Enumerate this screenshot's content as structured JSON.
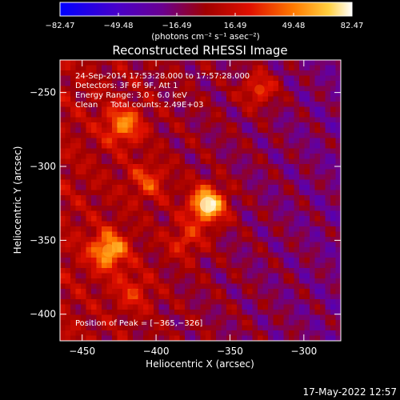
{
  "colorbar": {
    "ticks": [
      "−82.47",
      "−49.48",
      "−16.49",
      "16.49",
      "49.48",
      "82.47"
    ],
    "units": "(photons cm⁻² s⁻¹ asec⁻²)",
    "range": [
      -82.47,
      82.47
    ]
  },
  "chart_data": {
    "type": "heatmap",
    "title": "Reconstructed RHESSI Image",
    "xlabel": "Heliocentric X (arcsec)",
    "ylabel": "Heliocentric Y (arcsec)",
    "xlim": [
      -465,
      -275
    ],
    "ylim": [
      -418,
      -228
    ],
    "xticks": [
      -450,
      -400,
      -350,
      -300
    ],
    "yticks": [
      -250,
      -300,
      -350,
      -400
    ],
    "xtick_labels": [
      "−450",
      "−400",
      "−350",
      "−300"
    ],
    "ytick_labels": [
      "−250",
      "−300",
      "−350",
      "−400"
    ],
    "colormap": "thermal (blue → purple → red → orange → yellow → white)",
    "annotations": [
      "24-Sep-2014 17:53:28.000 to 17:57:28.000",
      "Detectors: 3F 6F 9F, Att 1",
      "Energy Range: 3.0 - 6.0 keV",
      "Clean     Total counts: 2.49E+03"
    ],
    "peak_label": "Position of Peak = [−365,−326]",
    "peak": {
      "x": -365,
      "y": -326
    },
    "sources": [
      {
        "x": -365,
        "y": -326,
        "intensity": 82.47
      },
      {
        "x": -432,
        "y": -357,
        "intensity": 62
      },
      {
        "x": -422,
        "y": -272,
        "intensity": 52
      },
      {
        "x": -330,
        "y": -248,
        "intensity": 40
      },
      {
        "x": -405,
        "y": -310,
        "intensity": 35
      },
      {
        "x": -380,
        "y": -350,
        "intensity": 30
      },
      {
        "x": -415,
        "y": -385,
        "intensity": 28
      }
    ]
  },
  "timestamp": "17-May-2022 12:57"
}
